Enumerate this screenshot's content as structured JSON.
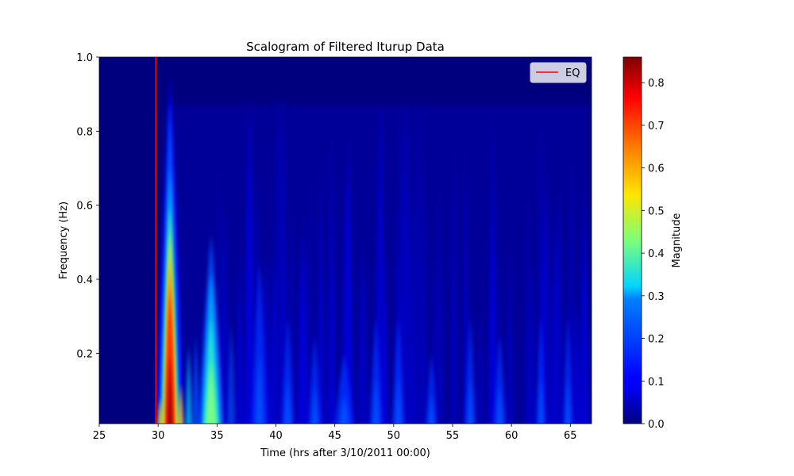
{
  "chart_data": {
    "type": "heatmap",
    "title": "Scalogram of Filtered Iturup Data",
    "xlabel": "Time (hrs after 3/10/2011 00:00)",
    "ylabel": "Frequency (Hz)",
    "xlim": [
      25,
      66.8
    ],
    "ylim": [
      0.01,
      1.0
    ],
    "x_ticks": [
      25,
      30,
      35,
      40,
      45,
      50,
      55,
      60,
      65
    ],
    "y_ticks": [
      0.2,
      0.4,
      0.6,
      0.8,
      1.0
    ],
    "y_tick_labels": [
      "0.2",
      "0.4",
      "0.6",
      "0.8",
      "1.0"
    ],
    "colormap": "jet",
    "colorbar": {
      "label": "Magnitude",
      "range": [
        0.0,
        0.86
      ],
      "ticks": [
        0.0,
        0.1,
        0.2,
        0.3,
        0.4,
        0.5,
        0.6,
        0.7,
        0.8
      ],
      "tick_labels": [
        "0.0",
        "0.1",
        "0.2",
        "0.3",
        "0.4",
        "0.5",
        "0.6",
        "0.7",
        "0.8"
      ]
    },
    "event_line": {
      "x": 29.8,
      "label": "EQ",
      "color": "#ff0000"
    },
    "legend": {
      "placement": "top-right",
      "entries": [
        "EQ"
      ]
    },
    "grid": false,
    "features": [
      {
        "time": 31.0,
        "peak_magnitude": 0.86,
        "top_frequency": 0.9
      },
      {
        "time": 34.5,
        "peak_magnitude": 0.42,
        "top_frequency": 0.5
      },
      {
        "time": 45.8,
        "peak_magnitude": 0.14,
        "top_frequency": 0.2
      },
      {
        "time": 59.0,
        "peak_magnitude": 0.12,
        "top_frequency": 0.15
      }
    ]
  }
}
